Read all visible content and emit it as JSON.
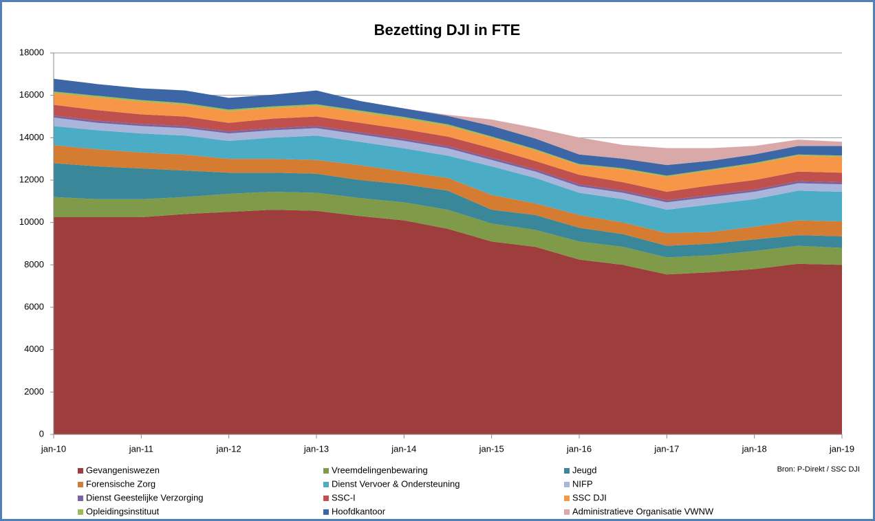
{
  "chart_data": {
    "type": "stacked-area",
    "title": "Bezetting DJI in FTE",
    "source": "Bron: P-Direkt / SSC DJI",
    "categories": [
      "jan-10",
      null,
      "jan-11",
      null,
      "jan-12",
      null,
      "jan-13",
      null,
      "jan-14",
      null,
      "jan-15",
      null,
      "jan-16",
      null,
      "jan-17",
      null,
      "jan-18",
      null,
      "jan-19"
    ],
    "ylim": [
      0,
      18000
    ],
    "yticks": [
      0,
      2000,
      4000,
      6000,
      8000,
      10000,
      12000,
      14000,
      16000,
      18000
    ],
    "grid": true,
    "series": [
      {
        "name": "Gevangeniswezen",
        "color": "#9e3e3c",
        "values": [
          10250,
          10250,
          10250,
          10400,
          10500,
          10600,
          10550,
          10300,
          10100,
          9700,
          9100,
          8850,
          8250,
          8000,
          7550,
          7650,
          7800,
          8050,
          8000
        ]
      },
      {
        "name": "Vreemdelingenbewaring",
        "color": "#7f9b4a",
        "values": [
          950,
          850,
          850,
          800,
          850,
          850,
          850,
          850,
          850,
          900,
          850,
          800,
          850,
          850,
          800,
          800,
          850,
          850,
          800
        ]
      },
      {
        "name": "Jeugd",
        "color": "#3a8799",
        "values": [
          1600,
          1550,
          1450,
          1250,
          1000,
          900,
          900,
          850,
          850,
          900,
          650,
          700,
          650,
          600,
          550,
          550,
          550,
          500,
          550
        ]
      },
      {
        "name": "Forensische Zorg",
        "color": "#d47d32",
        "values": [
          850,
          800,
          750,
          750,
          650,
          650,
          650,
          700,
          600,
          600,
          700,
          550,
          600,
          550,
          600,
          550,
          600,
          700,
          700
        ]
      },
      {
        "name": "Dienst Vervoer & Ondersteuning",
        "color": "#4bacc6",
        "values": [
          900,
          900,
          900,
          900,
          850,
          1000,
          1150,
          1100,
          1100,
          1050,
          1350,
          1200,
          1050,
          1100,
          1100,
          1300,
          1300,
          1400,
          1400
        ]
      },
      {
        "name": "NIFP",
        "color": "#a9b5da",
        "values": [
          400,
          350,
          350,
          350,
          350,
          350,
          350,
          350,
          350,
          350,
          300,
          300,
          300,
          300,
          350,
          350,
          350,
          350,
          350
        ]
      },
      {
        "name": "Dienst Geestelijke Verzorging",
        "color": "#7d62a0",
        "values": [
          100,
          100,
          100,
          100,
          100,
          100,
          100,
          100,
          100,
          100,
          100,
          100,
          100,
          100,
          100,
          100,
          100,
          100,
          100
        ]
      },
      {
        "name": "SSC-I",
        "color": "#c0504d",
        "values": [
          500,
          500,
          450,
          450,
          400,
          450,
          450,
          450,
          450,
          450,
          450,
          400,
          450,
          400,
          400,
          450,
          450,
          450,
          450
        ]
      },
      {
        "name": "SSC DJI",
        "color": "#f79646",
        "values": [
          550,
          600,
          600,
          550,
          550,
          500,
          500,
          500,
          500,
          500,
          500,
          500,
          450,
          600,
          700,
          700,
          750,
          750,
          750
        ]
      },
      {
        "name": "Opleidingsinstituut",
        "color": "#9bbb59",
        "values": [
          80,
          80,
          80,
          80,
          80,
          80,
          80,
          80,
          80,
          80,
          60,
          60,
          60,
          60,
          60,
          60,
          60,
          60,
          60
        ]
      },
      {
        "name": "Hoofdkantoor",
        "color": "#3c66a6",
        "values": [
          600,
          550,
          550,
          600,
          550,
          550,
          650,
          450,
          400,
          400,
          500,
          500,
          450,
          450,
          500,
          400,
          400,
          400,
          450
        ]
      },
      {
        "name": "Administratieve Organisatie VWNW",
        "color": "#d9a8a8",
        "values": [
          0,
          0,
          0,
          0,
          0,
          0,
          0,
          0,
          0,
          50,
          300,
          500,
          800,
          650,
          800,
          600,
          400,
          300,
          200
        ]
      }
    ]
  }
}
